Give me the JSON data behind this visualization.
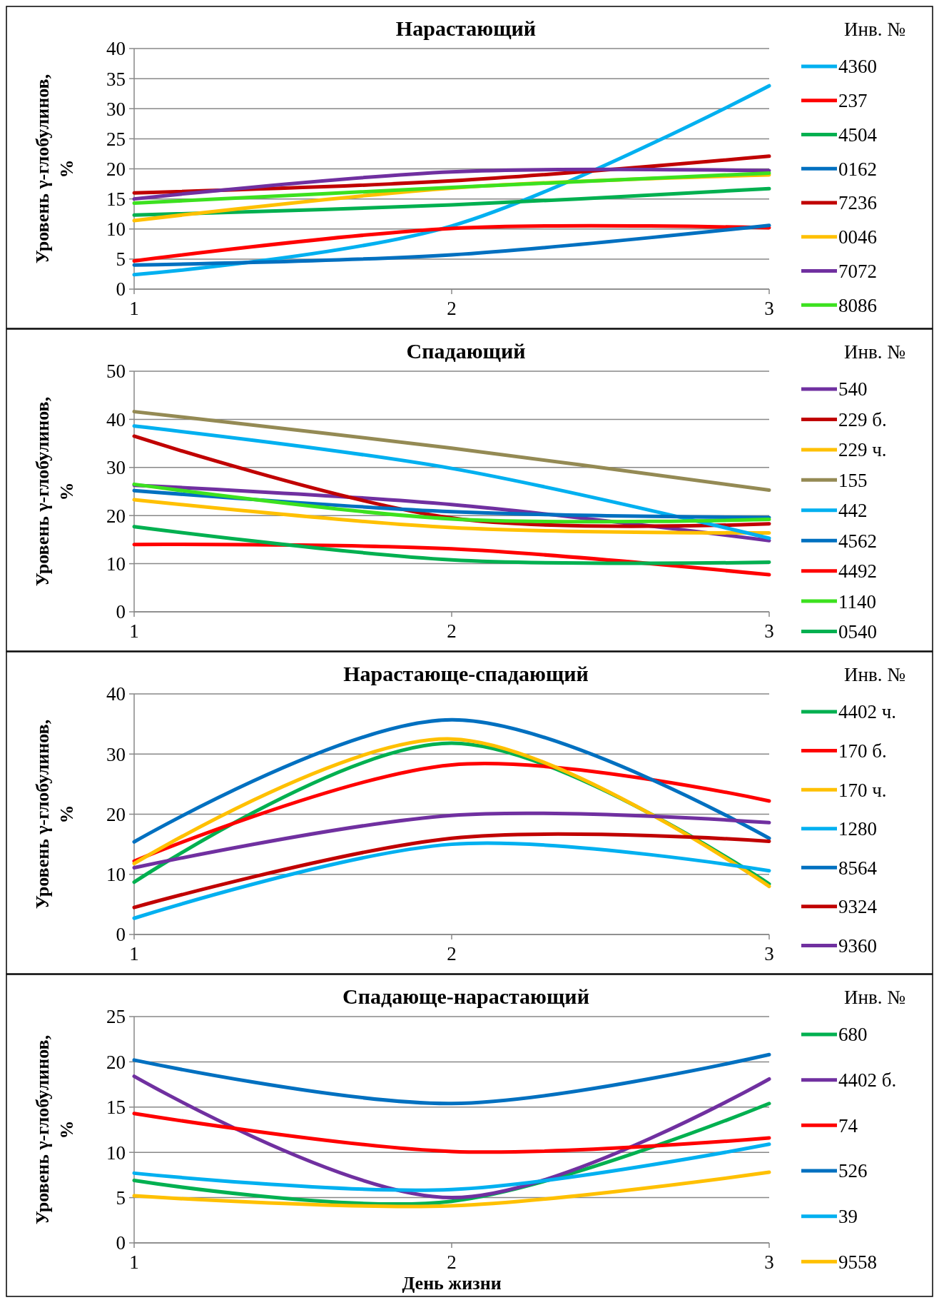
{
  "chart_data": [
    {
      "type": "line",
      "title": "Нарастающий",
      "ylabel": "Уровень γ-глобулинов, %",
      "legend_title": "Инв. №",
      "legend": "right",
      "grid": "y",
      "x": [
        1,
        2,
        3
      ],
      "xlim": [
        1,
        3
      ],
      "xticks": [
        1,
        2,
        3
      ],
      "ylim": [
        0,
        40
      ],
      "yticks": [
        0,
        5,
        10,
        15,
        20,
        25,
        30,
        35,
        40
      ],
      "series": [
        {
          "name": "4360",
          "color": "#00b0f0",
          "values": [
            2.4,
            10.5,
            33.8
          ]
        },
        {
          "name": "237",
          "color": "#ff0000",
          "values": [
            4.7,
            10.1,
            10.2
          ]
        },
        {
          "name": "4504",
          "color": "#00b050",
          "values": [
            12.3,
            14.0,
            16.7
          ]
        },
        {
          "name": "0162",
          "color": "#0070c0",
          "values": [
            4.0,
            5.7,
            10.6
          ]
        },
        {
          "name": "7236",
          "color": "#c00000",
          "values": [
            16.0,
            18.0,
            22.1
          ]
        },
        {
          "name": "0046",
          "color": "#ffc000",
          "values": [
            11.4,
            16.8,
            19.0
          ]
        },
        {
          "name": "7072",
          "color": "#7030a0",
          "values": [
            15.0,
            19.5,
            19.7
          ]
        },
        {
          "name": "8086",
          "color": "#3ce11f",
          "values": [
            14.3,
            16.9,
            19.3
          ]
        }
      ]
    },
    {
      "type": "line",
      "title": "Спадающий",
      "ylabel": "Уровень γ-глобулинов, %",
      "legend_title": "Инв. №",
      "legend": "right",
      "grid": "y",
      "x": [
        1,
        2,
        3
      ],
      "xlim": [
        1,
        3
      ],
      "xticks": [
        1,
        2,
        3
      ],
      "ylim": [
        0,
        50
      ],
      "yticks": [
        0,
        10,
        20,
        30,
        40,
        50
      ],
      "series": [
        {
          "name": "540",
          "color": "#7030a0",
          "values": [
            26.3,
            22.3,
            14.8
          ]
        },
        {
          "name": "229 б.",
          "color": "#c00000",
          "values": [
            36.5,
            19.5,
            18.3
          ]
        },
        {
          "name": "229 ч.",
          "color": "#ffc000",
          "values": [
            23.3,
            17.5,
            16.4
          ]
        },
        {
          "name": "155",
          "color": "#948a54",
          "values": [
            41.6,
            34.0,
            25.3
          ]
        },
        {
          "name": "442",
          "color": "#00b0f0",
          "values": [
            38.6,
            29.8,
            15.3
          ]
        },
        {
          "name": "4562",
          "color": "#0070c0",
          "values": [
            25.2,
            20.8,
            19.6
          ]
        },
        {
          "name": "4492",
          "color": "#ff0000",
          "values": [
            14.0,
            13.1,
            7.7
          ]
        },
        {
          "name": "1140",
          "color": "#3ce11f",
          "values": [
            26.5,
            19.3,
            19.2
          ]
        },
        {
          "name": "0540",
          "color": "#00b050",
          "values": [
            17.7,
            10.8,
            10.3
          ]
        }
      ]
    },
    {
      "type": "line",
      "title": "Нарастающе-спадающий",
      "ylabel": "Уровень γ-глобулинов, %",
      "legend_title": "Инв. №",
      "legend": "right",
      "grid": "y",
      "x": [
        1,
        2,
        3
      ],
      "xlim": [
        1,
        3
      ],
      "xticks": [
        1,
        2,
        3
      ],
      "ylim": [
        0,
        40
      ],
      "yticks": [
        0,
        10,
        20,
        30,
        40
      ],
      "series": [
        {
          "name": "4402 ч.",
          "color": "#00b050",
          "values": [
            8.7,
            31.8,
            8.4
          ]
        },
        {
          "name": "170 б.",
          "color": "#ff0000",
          "values": [
            12.2,
            28.2,
            22.2
          ]
        },
        {
          "name": "170 ч.",
          "color": "#ffc000",
          "values": [
            11.8,
            32.5,
            8.0
          ]
        },
        {
          "name": "1280",
          "color": "#00b0f0",
          "values": [
            2.7,
            15.0,
            10.6
          ]
        },
        {
          "name": "8564",
          "color": "#0070c0",
          "values": [
            15.4,
            35.7,
            16.0
          ]
        },
        {
          "name": "9324",
          "color": "#c00000",
          "values": [
            4.5,
            16.0,
            15.5
          ]
        },
        {
          "name": "9360",
          "color": "#7030a0",
          "values": [
            11.1,
            19.8,
            18.6
          ]
        }
      ]
    },
    {
      "type": "line",
      "title": "Спадающе-нарастающий",
      "xlabel": "День жизни",
      "ylabel": "Уровень γ-глобулинов, %",
      "legend_title": "Инв. №",
      "legend": "right",
      "grid": "y",
      "x": [
        1,
        2,
        3
      ],
      "xlim": [
        1,
        3
      ],
      "xticks": [
        1,
        2,
        3
      ],
      "ylim": [
        0,
        25
      ],
      "yticks": [
        0,
        5,
        10,
        15,
        20,
        25
      ],
      "series": [
        {
          "name": "680",
          "color": "#00b050",
          "values": [
            6.9,
            4.6,
            15.4
          ]
        },
        {
          "name": "4402 б.",
          "color": "#7030a0",
          "values": [
            18.4,
            5.0,
            18.1
          ]
        },
        {
          "name": "74",
          "color": "#ff0000",
          "values": [
            14.3,
            10.1,
            11.6
          ]
        },
        {
          "name": "526",
          "color": "#0070c0",
          "values": [
            20.2,
            15.4,
            20.8
          ]
        },
        {
          "name": "39",
          "color": "#00b0f0",
          "values": [
            7.7,
            5.9,
            10.9
          ]
        },
        {
          "name": "9558",
          "color": "#ffc000",
          "values": [
            5.2,
            4.1,
            7.8
          ]
        }
      ]
    }
  ]
}
